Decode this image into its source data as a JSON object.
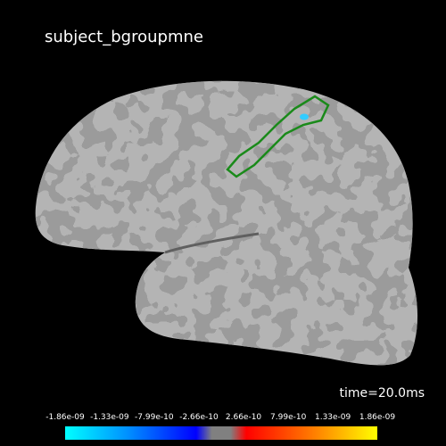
{
  "title": "subject_bgroupmne",
  "time_label": "time=20.0ms",
  "colorbar": {
    "lim": [
      -1.86e-09,
      1.86e-09
    ],
    "ticks": [
      {
        "value": -1.86e-09,
        "label": "-1.86e-09"
      },
      {
        "value": -1.33e-09,
        "label": "-1.33e-09"
      },
      {
        "value": -7.99e-10,
        "label": "-7.99e-10"
      },
      {
        "value": -2.66e-10,
        "label": "-2.66e-10"
      },
      {
        "value": 2.66e-10,
        "label": "2.66e-10"
      },
      {
        "value": 7.99e-10,
        "label": "7.99e-10"
      },
      {
        "value": 1.33e-09,
        "label": "1.33e-09"
      },
      {
        "value": 1.86e-09,
        "label": "1.86e-09"
      }
    ]
  }
}
